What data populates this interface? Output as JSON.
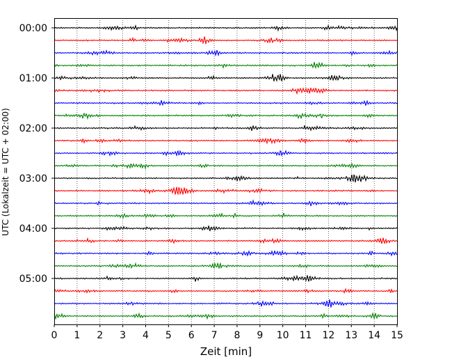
{
  "chart_data": {
    "type": "line",
    "title": "",
    "xlabel": "Zeit  [min]",
    "ylabel": "UTC (Lokalzeit = UTC + 02:00)",
    "xlim": [
      0,
      15
    ],
    "x_ticks": [
      "0",
      "1",
      "2",
      "3",
      "4",
      "5",
      "6",
      "7",
      "8",
      "9",
      "10",
      "11",
      "12",
      "13",
      "14",
      "15"
    ],
    "y_tick_labels": [
      {
        "label": "00:00",
        "row": 0
      },
      {
        "label": "01:00",
        "row": 4
      },
      {
        "label": "02:00",
        "row": 8
      },
      {
        "label": "03:00",
        "row": 12
      },
      {
        "label": "04:00",
        "row": 16
      },
      {
        "label": "05:00",
        "row": 20
      }
    ],
    "grid": "vertical dotted lines at each minute",
    "line_colors": [
      "#000000",
      "#ff0000",
      "#0000ff",
      "#008000"
    ],
    "rows": [
      {
        "start": "00:00",
        "color": "#000000"
      },
      {
        "start": "00:15",
        "color": "#ff0000"
      },
      {
        "start": "00:30",
        "color": "#0000ff"
      },
      {
        "start": "00:45",
        "color": "#008000"
      },
      {
        "start": "01:00",
        "color": "#000000"
      },
      {
        "start": "01:15",
        "color": "#ff0000"
      },
      {
        "start": "01:30",
        "color": "#0000ff"
      },
      {
        "start": "01:45",
        "color": "#008000"
      },
      {
        "start": "02:00",
        "color": "#000000"
      },
      {
        "start": "02:15",
        "color": "#ff0000"
      },
      {
        "start": "02:30",
        "color": "#0000ff"
      },
      {
        "start": "02:45",
        "color": "#008000"
      },
      {
        "start": "03:00",
        "color": "#000000"
      },
      {
        "start": "03:15",
        "color": "#ff0000"
      },
      {
        "start": "03:30",
        "color": "#0000ff"
      },
      {
        "start": "03:45",
        "color": "#008000"
      },
      {
        "start": "04:00",
        "color": "#000000"
      },
      {
        "start": "04:15",
        "color": "#ff0000"
      },
      {
        "start": "04:30",
        "color": "#0000ff"
      },
      {
        "start": "04:45",
        "color": "#008000"
      },
      {
        "start": "05:00",
        "color": "#000000"
      },
      {
        "start": "05:15",
        "color": "#ff0000"
      },
      {
        "start": "05:30",
        "color": "#0000ff"
      },
      {
        "start": "05:45",
        "color": "#008000"
      }
    ]
  }
}
